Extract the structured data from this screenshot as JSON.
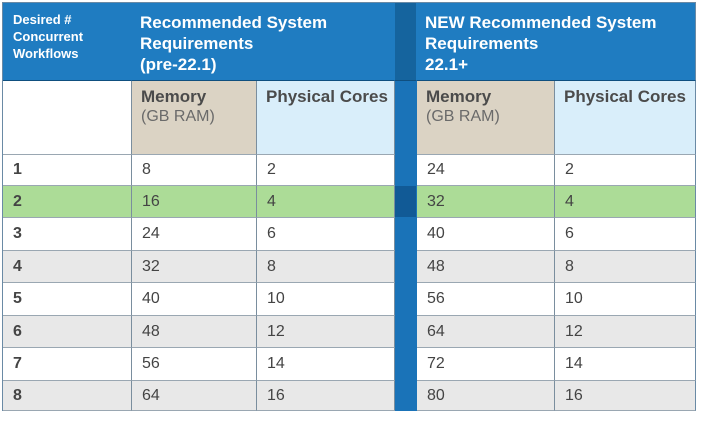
{
  "headers": {
    "corner": [
      "Desired #",
      "Concurrent",
      "Workflows"
    ],
    "group_old": [
      "Recommended System",
      "Requirements",
      "(pre-22.1)"
    ],
    "group_new": [
      "NEW Recommended System",
      "Requirements",
      "22.1+"
    ]
  },
  "subheaders": {
    "memory_title": "Memory",
    "memory_unit": "(GB RAM)",
    "cores_title": "Physical Cores"
  },
  "highlight_row": 1,
  "colors": {
    "header_blue": "#1f7cc1",
    "separator_blue": "#1a73b8",
    "memory_tan": "#dbd3c4",
    "cores_light_blue": "#d9eefa",
    "highlight_green": "#acdc97",
    "stripe_gray": "#e8e8e8"
  },
  "rows": [
    {
      "workflows": "1",
      "old_memory": "8",
      "old_cores": "2",
      "new_memory": "24",
      "new_cores": "2"
    },
    {
      "workflows": "2",
      "old_memory": "16",
      "old_cores": "4",
      "new_memory": "32",
      "new_cores": "4"
    },
    {
      "workflows": "3",
      "old_memory": "24",
      "old_cores": "6",
      "new_memory": "40",
      "new_cores": "6"
    },
    {
      "workflows": "4",
      "old_memory": "32",
      "old_cores": "8",
      "new_memory": "48",
      "new_cores": "8"
    },
    {
      "workflows": "5",
      "old_memory": "40",
      "old_cores": "10",
      "new_memory": "56",
      "new_cores": "10"
    },
    {
      "workflows": "6",
      "old_memory": "48",
      "old_cores": "12",
      "new_memory": "64",
      "new_cores": "12"
    },
    {
      "workflows": "7",
      "old_memory": "56",
      "old_cores": "14",
      "new_memory": "72",
      "new_cores": "14"
    },
    {
      "workflows": "8",
      "old_memory": "64",
      "old_cores": "16",
      "new_memory": "80",
      "new_cores": "16"
    }
  ]
}
